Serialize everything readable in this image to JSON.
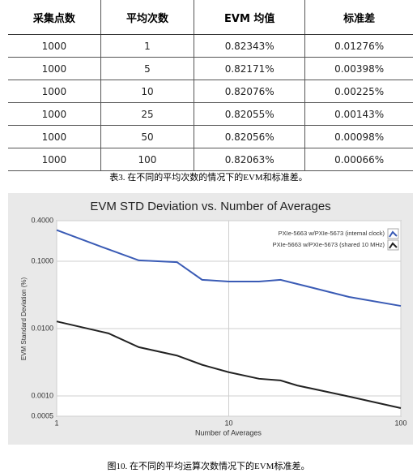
{
  "table": {
    "header": [
      "采集点数",
      "平均次数",
      "EVM 均值",
      "标准差"
    ],
    "rows": [
      [
        "1000",
        "1",
        "0.82343%",
        "0.01276%"
      ],
      [
        "1000",
        "5",
        "0.82171%",
        "0.00398%"
      ],
      [
        "1000",
        "10",
        "0.82076%",
        "0.00225%"
      ],
      [
        "1000",
        "25",
        "0.82055%",
        "0.00143%"
      ],
      [
        "1000",
        "50",
        "0.82056%",
        "0.00098%"
      ],
      [
        "1000",
        "100",
        "0.82063%",
        "0.00066%"
      ]
    ]
  },
  "table_caption": "表3. 在不同的平均次数的情况下的EVM和标准差。",
  "chart_data": {
    "type": "line",
    "title": "EVM STD Deviation vs. Number of Averages",
    "x_label": "Number of Averages",
    "y_label": "EVM Standard Deviation (%)",
    "x": [
      1,
      2,
      3,
      5,
      7,
      10,
      15,
      20,
      25,
      50,
      100
    ],
    "series": [
      {
        "name": "PXIe-5663 w/PXIe-5673 (internal clock)",
        "color": "#3a5bb5",
        "values": [
          0.29,
          0.15,
          0.103,
          0.097,
          0.053,
          0.05,
          0.05,
          0.053,
          0.046,
          0.0295,
          0.0217
        ]
      },
      {
        "name": "PXIe-5663 w/PXIe-5673 (shared 10 MHz)",
        "color": "#222222",
        "values": [
          0.01276,
          0.0085,
          0.0053,
          0.00398,
          0.0029,
          0.00225,
          0.0018,
          0.0017,
          0.00143,
          0.00098,
          0.00066
        ]
      }
    ],
    "xlim": [
      1,
      100
    ],
    "xticks": [
      1,
      10,
      100
    ],
    "ylim": [
      0.0005,
      0.4
    ],
    "yticks": [
      {
        "value": 0.0005,
        "label": "0.0005"
      },
      {
        "value": 0.001,
        "label": "0.0010"
      },
      {
        "value": 0.01,
        "label": "0.0100"
      },
      {
        "value": 0.1,
        "label": "0.1000"
      },
      {
        "value": 0.4,
        "label": "0.4000"
      }
    ],
    "xscale": "log",
    "yscale": "log",
    "grid": true,
    "legend": "top-right"
  },
  "figure_caption": "图10. 在不同的平均运算次数情况下的EVM标准差。"
}
